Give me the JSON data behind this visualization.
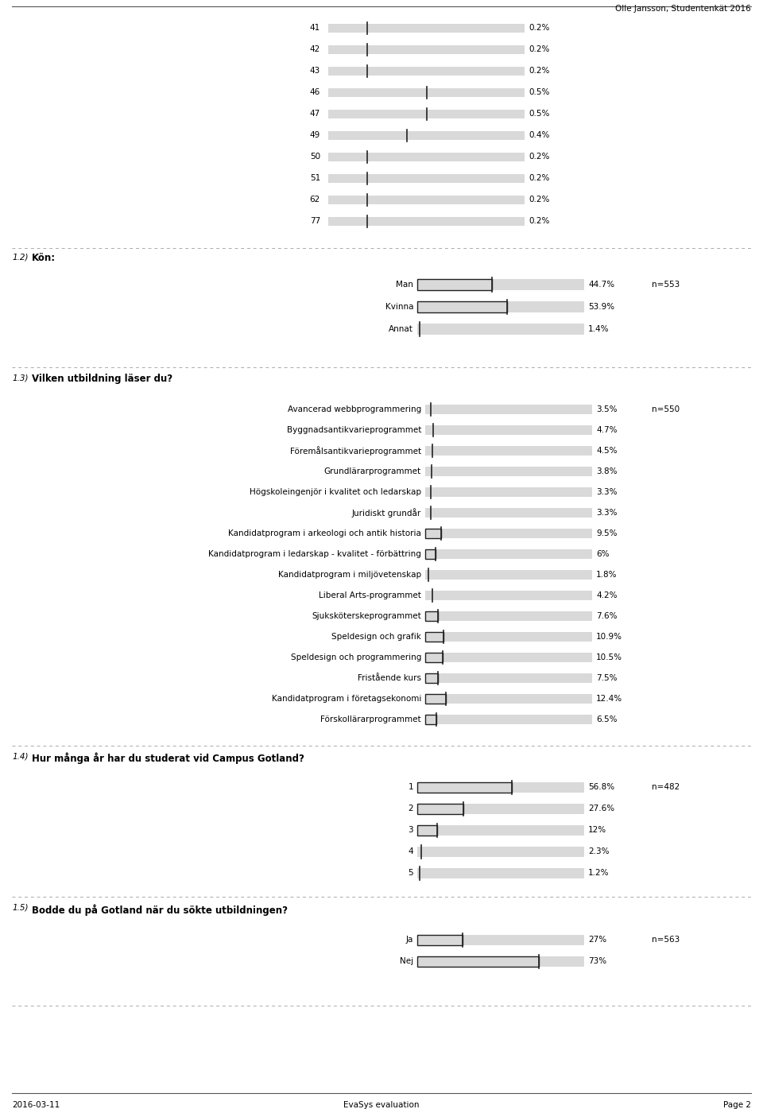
{
  "header_text": "Olle Jansson, Studentenkät 2016",
  "footer_left": "2016-03-11",
  "footer_center": "EvaSys evaluation",
  "footer_right": "Page 2",
  "bar_color": "#d9d9d9",
  "background": "#ffffff",
  "section1_items": [
    {
      "label": "41",
      "value": 0.2,
      "pct": "0.2%"
    },
    {
      "label": "42",
      "value": 0.2,
      "pct": "0.2%"
    },
    {
      "label": "43",
      "value": 0.2,
      "pct": "0.2%"
    },
    {
      "label": "46",
      "value": 0.5,
      "pct": "0.5%"
    },
    {
      "label": "47",
      "value": 0.5,
      "pct": "0.5%"
    },
    {
      "label": "49",
      "value": 0.4,
      "pct": "0.4%"
    },
    {
      "label": "50",
      "value": 0.2,
      "pct": "0.2%"
    },
    {
      "label": "51",
      "value": 0.2,
      "pct": "0.2%"
    },
    {
      "label": "62",
      "value": 0.2,
      "pct": "0.2%"
    },
    {
      "label": "77",
      "value": 0.2,
      "pct": "0.2%"
    }
  ],
  "section1_max_val": 1.0,
  "section2_title": "Kön:",
  "section2_num": "1.2)",
  "section2_n": "n=553",
  "section2_items": [
    {
      "label": "Man",
      "value": 44.7,
      "pct": "44.7%",
      "has_box": true
    },
    {
      "label": "Kvinna",
      "value": 53.9,
      "pct": "53.9%",
      "has_box": true
    },
    {
      "label": "Annat",
      "value": 1.4,
      "pct": "1.4%",
      "has_box": false
    }
  ],
  "section3_title": "Vilken utbildning läser du?",
  "section3_num": "1.3)",
  "section3_n": "n=550",
  "section3_items": [
    {
      "label": "Avancerad webbprogrammering",
      "value": 3.5,
      "pct": "3.5%",
      "has_box": false
    },
    {
      "label": "Byggnadsantikvarieprogrammet",
      "value": 4.7,
      "pct": "4.7%",
      "has_box": false
    },
    {
      "label": "Föremålsantikvarieprogrammet",
      "value": 4.5,
      "pct": "4.5%",
      "has_box": false
    },
    {
      "label": "Grundlärarprogrammet",
      "value": 3.8,
      "pct": "3.8%",
      "has_box": false
    },
    {
      "label": "Högskoleingenjör i kvalitet och ledarskap",
      "value": 3.3,
      "pct": "3.3%",
      "has_box": false
    },
    {
      "label": "Juridiskt grundår",
      "value": 3.3,
      "pct": "3.3%",
      "has_box": false
    },
    {
      "label": "Kandidatprogram i arkeologi och antik historia",
      "value": 9.5,
      "pct": "9.5%",
      "has_box": true
    },
    {
      "label": "Kandidatprogram i ledarskap - kvalitet - förbättring",
      "value": 6.0,
      "pct": "6%",
      "has_box": true
    },
    {
      "label": "Kandidatprogram i miljövetenskap",
      "value": 1.8,
      "pct": "1.8%",
      "has_box": false
    },
    {
      "label": "Liberal Arts-programmet",
      "value": 4.2,
      "pct": "4.2%",
      "has_box": false
    },
    {
      "label": "Sjuksköterskeprogrammet",
      "value": 7.6,
      "pct": "7.6%",
      "has_box": true
    },
    {
      "label": "Speldesign och grafik",
      "value": 10.9,
      "pct": "10.9%",
      "has_box": true
    },
    {
      "label": "Speldesign och programmering",
      "value": 10.5,
      "pct": "10.5%",
      "has_box": true
    },
    {
      "label": "Fristående kurs",
      "value": 7.5,
      "pct": "7.5%",
      "has_box": true
    },
    {
      "label": "Kandidatprogram i företagsekonomi",
      "value": 12.4,
      "pct": "12.4%",
      "has_box": true
    },
    {
      "label": "Förskollärarprogrammet",
      "value": 6.5,
      "pct": "6.5%",
      "has_box": true
    }
  ],
  "section4_title": "Hur många år har du studerat vid Campus Gotland?",
  "section4_num": "1.4)",
  "section4_n": "n=482",
  "section4_items": [
    {
      "label": "1",
      "value": 56.8,
      "pct": "56.8%",
      "has_box": true
    },
    {
      "label": "2",
      "value": 27.6,
      "pct": "27.6%",
      "has_box": true
    },
    {
      "label": "3",
      "value": 12.0,
      "pct": "12%",
      "has_box": true
    },
    {
      "label": "4",
      "value": 2.3,
      "pct": "2.3%",
      "has_box": false
    },
    {
      "label": "5",
      "value": 1.2,
      "pct": "1.2%",
      "has_box": false
    }
  ],
  "section5_title": "Bodde du på Gotland när du sökte utbildningen?",
  "section5_num": "1.5)",
  "section5_n": "n=563",
  "section5_items": [
    {
      "label": "Ja",
      "value": 27.0,
      "pct": "27%",
      "has_box": true
    },
    {
      "label": "Nej",
      "value": 73.0,
      "pct": "73%",
      "has_box": true
    }
  ]
}
